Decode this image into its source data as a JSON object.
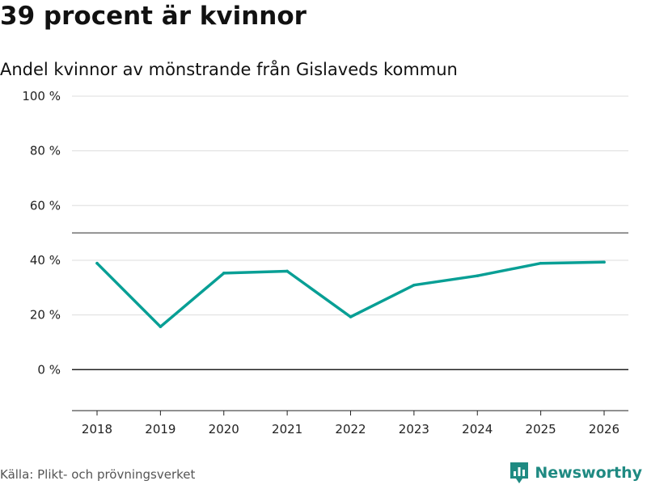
{
  "header": {
    "title": "39 procent är kvinnor",
    "subtitle": "Andel kvinnor av mönstrande från Gislaveds kommun"
  },
  "footer": {
    "source": "Källa: Plikt- och prövningsverket",
    "brand": "Newsworthy"
  },
  "colors": {
    "line": "#089f95",
    "brand": "#1f8a82",
    "grid": "#dddddd",
    "reference": "#555555",
    "axis": "#222222"
  },
  "chart_data": {
    "type": "line",
    "title": "39 procent är kvinnor",
    "subtitle": "Andel kvinnor av mönstrande från Gislaveds kommun",
    "xlabel": "",
    "ylabel": "",
    "x": [
      "2018",
      "2019",
      "2020",
      "2021",
      "2022",
      "2023",
      "2024",
      "2025",
      "2026"
    ],
    "series": [
      {
        "name": "Andel kvinnor",
        "values": [
          38.9,
          15.7,
          35.3,
          36.0,
          19.3,
          30.9,
          34.3,
          38.9,
          39.3
        ]
      }
    ],
    "ylim": [
      -15,
      100
    ],
    "yticks": [
      0,
      20,
      40,
      60,
      80,
      100
    ],
    "ytick_labels": [
      "0 %",
      "20 %",
      "40 %",
      "60 %",
      "80 %",
      "100 %"
    ],
    "reference_line": 50,
    "grid": true
  }
}
